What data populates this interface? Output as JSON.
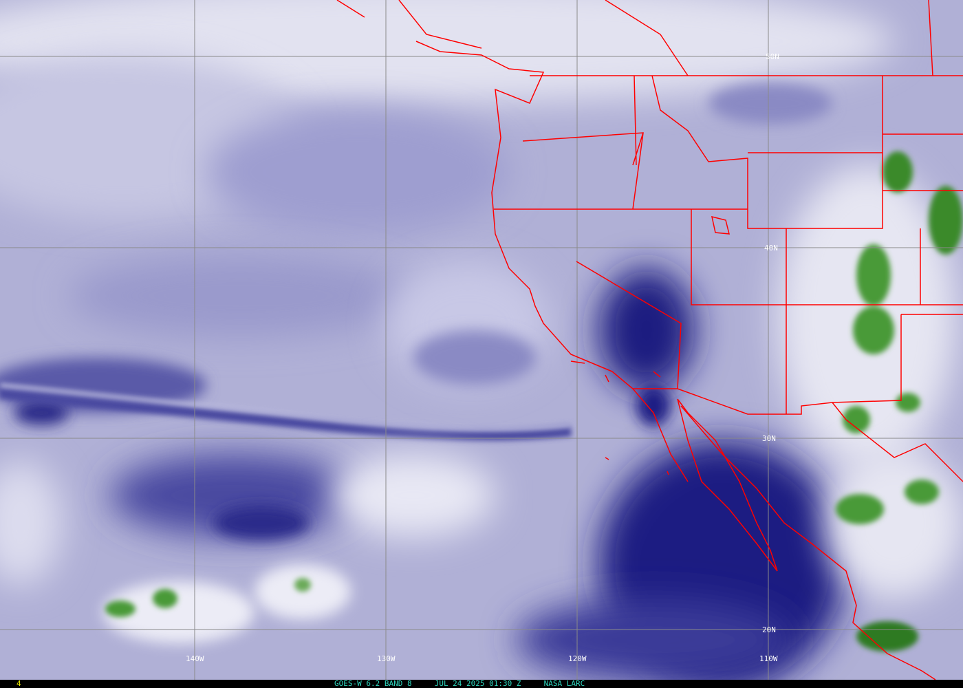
{
  "image": {
    "satellite": "GOES-W",
    "channel": "6.2",
    "band": "BAND 8",
    "date": "JUL 24 2025",
    "time": "01:30 Z",
    "credit": "NASA LARC",
    "frame_number": "4",
    "caption": "GOES-W 6.2 BAND 8     JUL 24 2025 01:30 Z     NASA LARC"
  },
  "grid": {
    "latitudes": [
      "50N",
      "40N",
      "30N",
      "20N"
    ],
    "longitudes": [
      "140W",
      "130W",
      "120W",
      "110W"
    ]
  },
  "colors": {
    "boundaries": "#ff0000",
    "gridlines": "#8a8a8a",
    "labels": "#ffffff",
    "caption": "#2fd8c0",
    "frame_number": "#e8e800",
    "dry_air": "#14147a",
    "moist_air": "#e8e8f4",
    "cloud_tops": "#3a8a2a"
  }
}
